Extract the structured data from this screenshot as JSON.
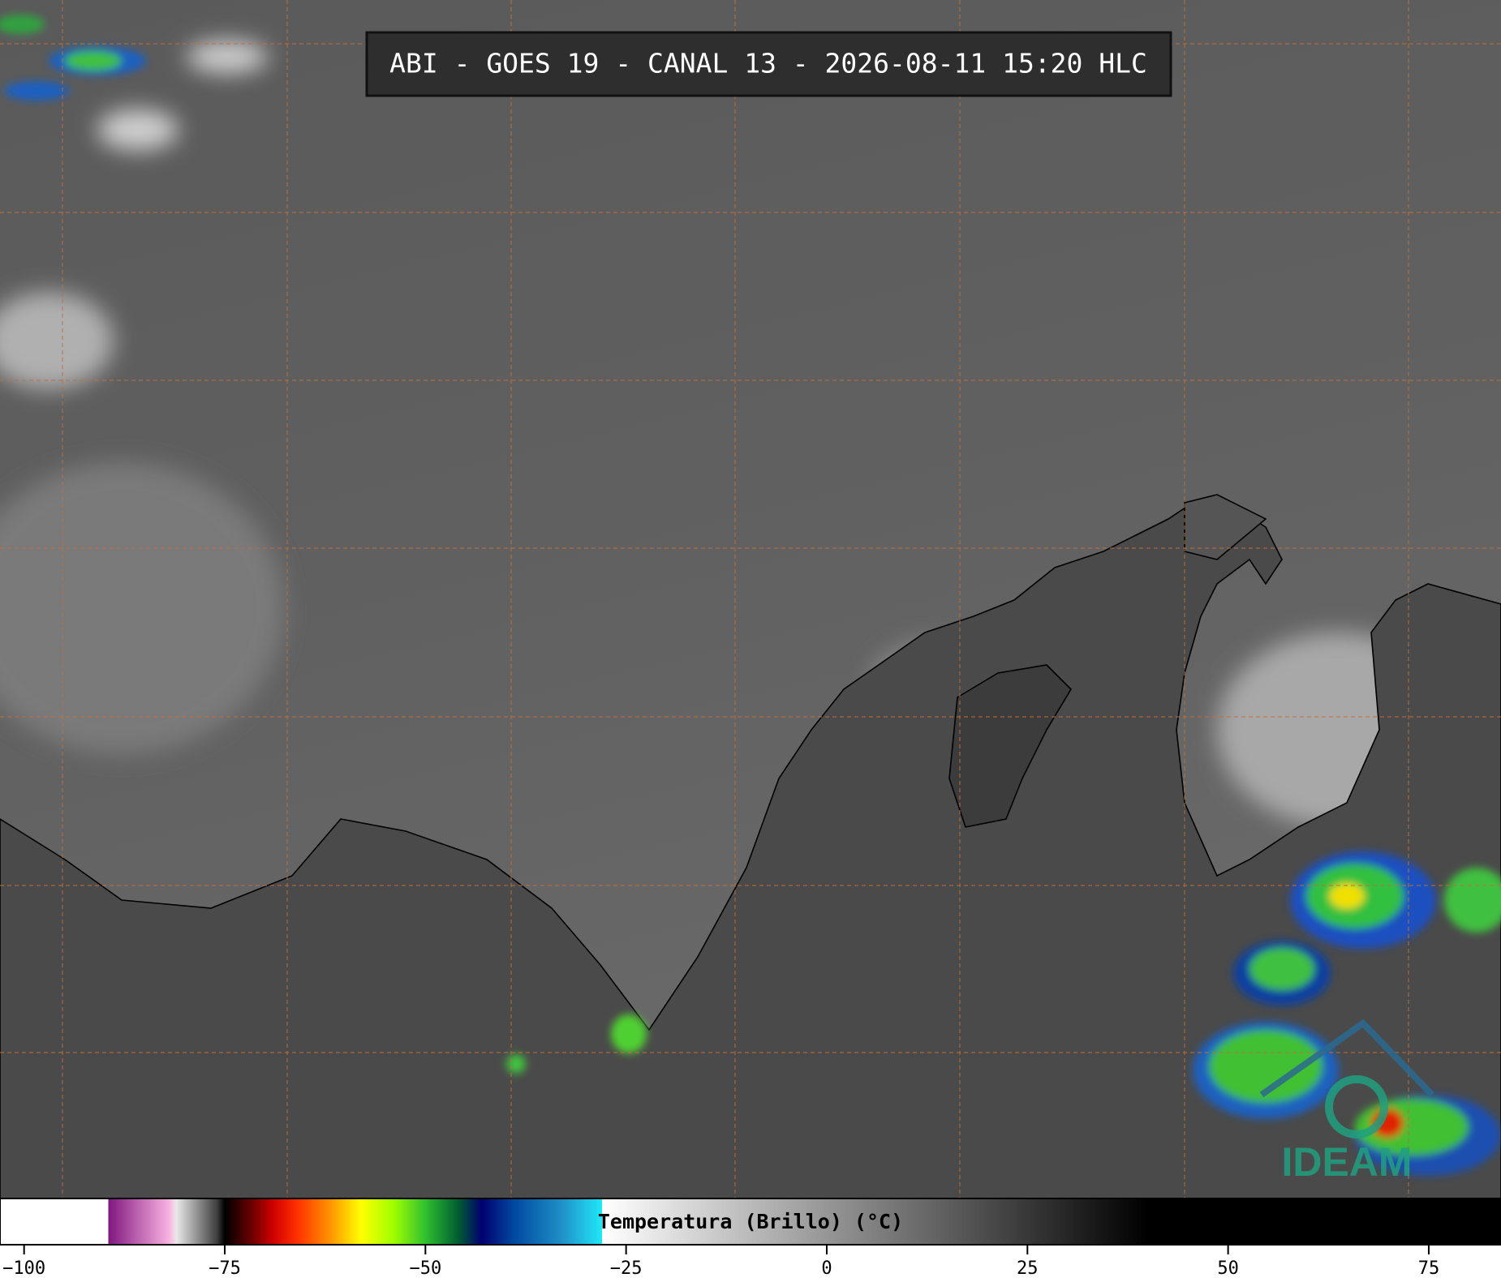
{
  "title": "ABI - GOES 19 - CANAL 13 - 2026-08-11 15:20 HLC",
  "logo": "IDEAM",
  "colorbar": {
    "label": "Temperatura (Brillo) (°C)",
    "xlim": [
      -103,
      84
    ],
    "xticks": [
      {
        "value": -100,
        "label": "−100"
      },
      {
        "value": -75,
        "label": "−75"
      },
      {
        "value": -50,
        "label": "−50"
      },
      {
        "value": -25,
        "label": "−25"
      },
      0,
      25,
      50,
      75
    ],
    "colormap": [
      {
        "value": -103,
        "color": "#ffffff"
      },
      {
        "value": -89.5,
        "color": "#ffffff"
      },
      {
        "value": -89.5,
        "color": "#801880"
      },
      {
        "value": -82,
        "color": "#f8b0e0"
      },
      {
        "value": -81,
        "color": "#e8e8e8"
      },
      {
        "value": -76,
        "color": "#404040"
      },
      {
        "value": -75,
        "color": "#000000"
      },
      {
        "value": -72,
        "color": "#600000"
      },
      {
        "value": -69,
        "color": "#d00000"
      },
      {
        "value": -66,
        "color": "#ff3000"
      },
      {
        "value": -62,
        "color": "#ff9000"
      },
      {
        "value": -58,
        "color": "#ffff00"
      },
      {
        "value": -54,
        "color": "#a0ff00"
      },
      {
        "value": -50,
        "color": "#30c030"
      },
      {
        "value": -46,
        "color": "#006030"
      },
      {
        "value": -43,
        "color": "#000070"
      },
      {
        "value": -39,
        "color": "#0048a0"
      },
      {
        "value": -33,
        "color": "#2090c8"
      },
      {
        "value": -28,
        "color": "#20e8f8"
      },
      {
        "value": -28,
        "color": "#ffffff"
      },
      {
        "value": 40,
        "color": "#000000"
      },
      {
        "value": 84,
        "color": "#000000"
      }
    ]
  }
}
